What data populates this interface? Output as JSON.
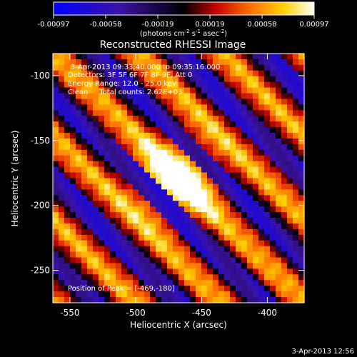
{
  "chart_data": {
    "type": "heatmap",
    "title": "Reconstructed RHESSI Image",
    "xlabel": "Heliocentric X (arcsec)",
    "ylabel": "Heliocentric Y (arcsec)",
    "xlim": [
      -563,
      -372
    ],
    "ylim": [
      -275,
      -83
    ],
    "x_ticks": [
      -550,
      -500,
      -450,
      -400
    ],
    "y_ticks": [
      -100,
      -150,
      -200,
      -250
    ],
    "colorbar": {
      "range": [
        -0.00097,
        0.00097
      ],
      "ticks": [
        "-0.00097",
        "-0.00058",
        "-0.00019",
        "0.00019",
        "0.00058",
        "0.00097"
      ],
      "colors": [
        "#0000ff",
        "#3b12a8",
        "#000000",
        "#c00000",
        "#ff6a00",
        "#ffd000",
        "#ffffff"
      ]
    },
    "peak": {
      "x": -469,
      "y": -180
    },
    "annotations": [
      "3-Apr-2013 09:33:40.000 to 09:35:16.000",
      "Detectors: 3F 5F 6F 7F 8F 9F, Att 0",
      "Energy Range: 12.0 - 25.0 keV",
      "Clean     Total counts: 2.62E+03",
      "Position of Peak = [-469,-180]"
    ],
    "grid": false
  },
  "colorbar_unit_line1": "(photons cm",
  "colorbar_unit_exp1": "-2",
  "colorbar_unit_line2": " s",
  "colorbar_unit_exp2": "-1",
  "colorbar_unit_line3": " asec",
  "colorbar_unit_exp3": "-2",
  "colorbar_unit_close": ")",
  "footer_timestamp": "3-Apr-2013 12:56"
}
